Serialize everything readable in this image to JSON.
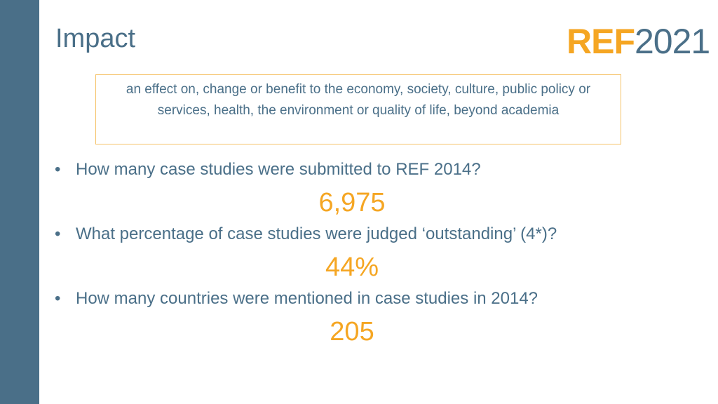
{
  "header": {
    "title": "Impact",
    "logo_ref": "REF",
    "logo_year": "2021"
  },
  "definition": "an effect on, change or benefit to the economy, society, culture, public policy or services, health, the environment or quality of life, beyond academia",
  "questions": [
    {
      "question": "How many case studies were submitted to REF 2014?",
      "answer": "6,975"
    },
    {
      "question": "What percentage of case studies were judged ‘outstanding’ (4*)?",
      "answer": "44%"
    },
    {
      "question": "How many countries were mentioned in case studies in 2014?",
      "answer": "205"
    }
  ]
}
